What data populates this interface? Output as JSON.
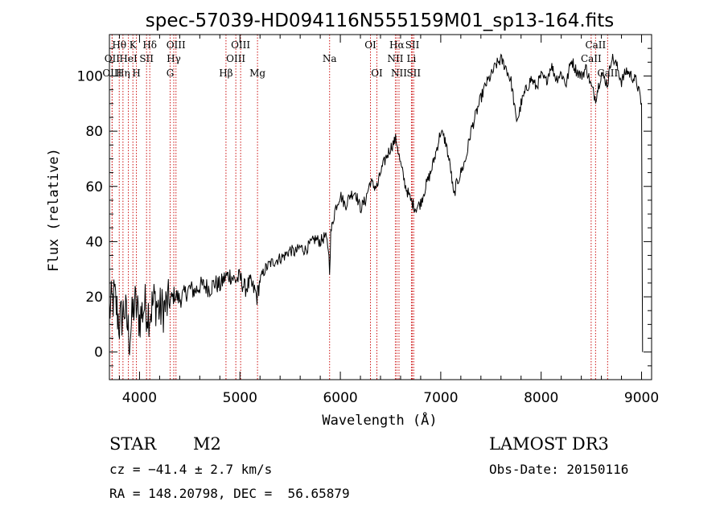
{
  "chart_data": {
    "type": "line",
    "title": "spec-57039-HD094116N555159M01_sp13-164.fits",
    "xlabel": "Wavelength (Å)",
    "ylabel": "Flux (relative)",
    "xlim": [
      3700,
      9100
    ],
    "ylim": [
      -10,
      115
    ],
    "xticks": [
      4000,
      5000,
      6000,
      7000,
      8000,
      9000
    ],
    "yticks": [
      0,
      20,
      40,
      60,
      80,
      100
    ],
    "grid": false,
    "series": [
      {
        "color": "#000000",
        "x": [
          3700,
          3750,
          3800,
          3850,
          3900,
          3950,
          4000,
          4050,
          4100,
          4150,
          4200,
          4250,
          4300,
          4350,
          4400,
          4450,
          4500,
          4550,
          4600,
          4650,
          4700,
          4750,
          4800,
          4850,
          4900,
          4950,
          5000,
          5050,
          5100,
          5150,
          5170,
          5200,
          5250,
          5300,
          5350,
          5400,
          5450,
          5500,
          5550,
          5600,
          5650,
          5700,
          5750,
          5800,
          5850,
          5880,
          5893,
          5905,
          5950,
          6000,
          6050,
          6100,
          6150,
          6200,
          6250,
          6300,
          6330,
          6370,
          6400,
          6450,
          6500,
          6550,
          6563,
          6580,
          6600,
          6650,
          6700,
          6750,
          6800,
          6850,
          6900,
          6950,
          7000,
          7050,
          7100,
          7130,
          7150,
          7200,
          7250,
          7300,
          7350,
          7400,
          7450,
          7500,
          7550,
          7600,
          7650,
          7700,
          7720,
          7750,
          7780,
          7800,
          7850,
          7900,
          7950,
          8000,
          8050,
          8100,
          8150,
          8200,
          8250,
          8300,
          8350,
          8400,
          8450,
          8500,
          8542,
          8600,
          8662,
          8700,
          8750,
          8800,
          8850,
          8900,
          8950,
          9000,
          9005,
          9010
        ],
        "y": [
          15,
          20,
          10,
          16,
          5,
          18,
          12,
          17,
          14,
          19,
          15,
          16,
          18,
          21,
          19,
          21,
          23,
          22,
          24,
          24,
          23,
          25,
          24,
          27,
          28,
          26,
          27,
          23,
          25,
          22,
          20,
          26,
          30,
          32,
          33,
          34,
          35,
          37,
          36,
          38,
          37,
          39,
          41,
          40,
          42,
          38,
          30,
          43,
          52,
          57,
          53,
          57,
          58,
          52,
          55,
          62,
          60,
          60,
          65,
          70,
          74,
          77,
          76,
          72,
          68,
          60,
          55,
          52,
          54,
          60,
          65,
          72,
          80,
          76,
          66,
          56,
          60,
          65,
          70,
          80,
          86,
          92,
          97,
          100,
          104,
          106,
          103,
          98,
          93,
          84,
          86,
          90,
          95,
          99,
          96,
          100,
          98,
          104,
          99,
          101,
          97,
          106,
          102,
          100,
          103,
          96,
          92,
          101,
          97,
          107,
          104,
          98,
          102,
          100,
          98,
          90,
          45,
          0
        ]
      }
    ],
    "line_markers": [
      {
        "label": "Hθ",
        "x": 3798,
        "row": 0
      },
      {
        "label": "OII",
        "x": 3727,
        "row": 1
      },
      {
        "label": "OIII",
        "x": 3727,
        "row": 2
      },
      {
        "label": "K",
        "x": 3934,
        "row": 0
      },
      {
        "label": "HeI",
        "x": 3889,
        "row": 1
      },
      {
        "label": "Hη",
        "x": 3835,
        "row": 2
      },
      {
        "label": "Hδ",
        "x": 4102,
        "row": 0
      },
      {
        "label": "SII",
        "x": 4070,
        "row": 1
      },
      {
        "label": "H",
        "x": 3969,
        "row": 2
      },
      {
        "label": "OIII",
        "x": 4363,
        "row": 0
      },
      {
        "label": "Hγ",
        "x": 4341,
        "row": 1
      },
      {
        "label": "G",
        "x": 4305,
        "row": 2
      },
      {
        "label": "Hβ",
        "x": 4861,
        "row": 2
      },
      {
        "label": "OIII",
        "x": 5007,
        "row": 0
      },
      {
        "label": "OIII",
        "x": 4959,
        "row": 1
      },
      {
        "label": "Mg",
        "x": 5175,
        "row": 2
      },
      {
        "label": "Na",
        "x": 5893,
        "row": 1
      },
      {
        "label": "OI",
        "x": 6300,
        "row": 0
      },
      {
        "label": "OI",
        "x": 6364,
        "row": 2
      },
      {
        "label": "Hα",
        "x": 6563,
        "row": 0
      },
      {
        "label": "NII",
        "x": 6548,
        "row": 1
      },
      {
        "label": "NII",
        "x": 6584,
        "row": 2
      },
      {
        "label": "SII",
        "x": 6717,
        "row": 0
      },
      {
        "label": "Li",
        "x": 6708,
        "row": 1
      },
      {
        "label": "SII",
        "x": 6731,
        "row": 2
      },
      {
        "label": "CaII",
        "x": 8542,
        "row": 0
      },
      {
        "label": "CaII",
        "x": 8498,
        "row": 1
      },
      {
        "label": "CaII",
        "x": 8662,
        "row": 2
      }
    ]
  },
  "info": {
    "class_label": "STAR",
    "subclass": "M2",
    "survey": "LAMOST DR3",
    "redshift": "cz = −41.4 ± 2.7 km/s",
    "obs_date": "Obs-Date: 20150116",
    "coords": "RA = 148.20798, DEC =  56.65879"
  }
}
